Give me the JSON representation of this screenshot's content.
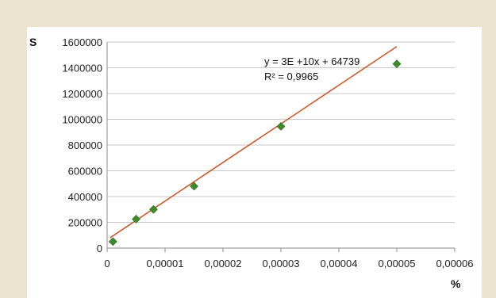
{
  "chart_data": {
    "type": "scatter",
    "title": "",
    "xlabel": "%",
    "ylabel": "S",
    "xlim": [
      0,
      6e-05
    ],
    "ylim": [
      0,
      1600000
    ],
    "x_ticks": [
      "0",
      "0,00001",
      "0,00002",
      "0,00003",
      "0,00004",
      "0,00005",
      "0,00006"
    ],
    "y_ticks": [
      "0",
      "200000",
      "400000",
      "600000",
      "800000",
      "1000000",
      "1200000",
      "1400000",
      "1600000"
    ],
    "grid": "horizontal",
    "legend": "none",
    "series": [
      {
        "x": [
          1e-06,
          5e-06,
          8e-06,
          1.5e-05,
          3e-05,
          5e-05
        ],
        "y": [
          50000,
          225000,
          300000,
          480000,
          945000,
          1430000
        ],
        "marker": "diamond",
        "color": "#3f8a2c"
      }
    ],
    "trendline": {
      "type": "linear",
      "color": "#cc5a2a",
      "slope": 30000000000,
      "intercept": 64739,
      "x_range": [
        5e-07,
        5e-05
      ],
      "equation": "y = 3E +10x + 64739",
      "r_squared": "R² = 0,9965"
    }
  }
}
